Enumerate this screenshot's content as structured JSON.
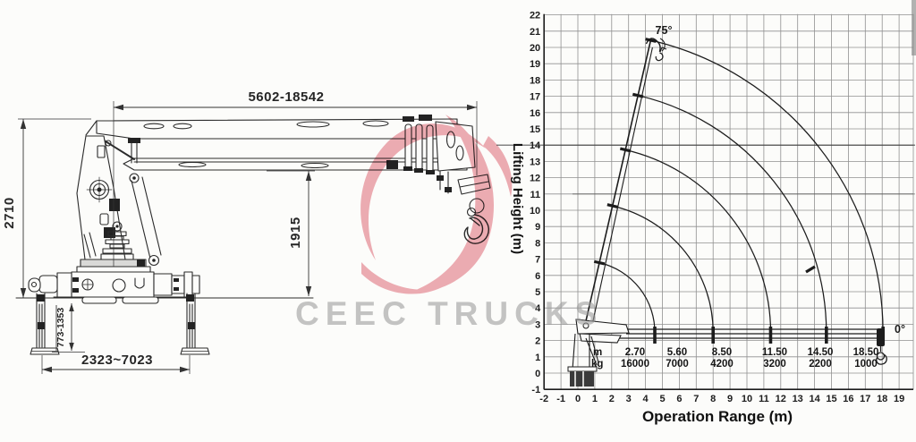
{
  "meta": {
    "description": "Truck mounted crane outline drawing with lifting capacity chart",
    "ink_color": "#2b2b2b",
    "grid_color": "#909090",
    "paper_color": "#fcfcfa"
  },
  "watermark": {
    "text": "CEEC TRUCKS",
    "text_color": "#9b9b9b",
    "logo_color": "#eda4ad"
  },
  "drawing": {
    "dimensions": {
      "boom_extension": "5602-18542",
      "overall_height": "2710",
      "boom_underside_height": "1915",
      "outrigger_clearance": "773-1353",
      "outrigger_span": "2323~7023"
    }
  },
  "chart": {
    "y_axis_title": "Lifting Height (m)",
    "x_axis_title": "Operation Range (m)",
    "max_angle_label": "75°",
    "min_angle_label": "0°",
    "table": {
      "row1_label": "m",
      "row2_label": "kg",
      "columns": [
        {
          "m": "2.70",
          "kg": "16000"
        },
        {
          "m": "5.60",
          "kg": "7000"
        },
        {
          "m": "8.50",
          "kg": "4200"
        },
        {
          "m": "11.50",
          "kg": "3200"
        },
        {
          "m": "14.50",
          "kg": "2200"
        },
        {
          "m": "18.50",
          "kg": "1000"
        }
      ]
    },
    "chart_data": {
      "type": "line",
      "title": "Crane lifting height vs operation range envelope",
      "xlabel": "Operation Range (m)",
      "ylabel": "Lifting Height (m)",
      "xlim": [
        -2,
        19.8
      ],
      "ylim": [
        -1,
        22
      ],
      "grid": true,
      "x_ticks": [
        -2,
        -1,
        0,
        1,
        2,
        3,
        4,
        5,
        6,
        7,
        8,
        9,
        10,
        11,
        12,
        13,
        14,
        15,
        16,
        17,
        18,
        19
      ],
      "y_ticks": [
        -1,
        0,
        1,
        2,
        3,
        4,
        5,
        6,
        7,
        8,
        9,
        10,
        11,
        12,
        13,
        14,
        15,
        16,
        17,
        18,
        19,
        20,
        21,
        22
      ],
      "boom_angle_max_deg": 75,
      "boom_angle_min_deg": 0,
      "drawn_boom_angle_deg": 77,
      "pivot": [
        0.32,
        2.5
      ],
      "tip_path_landings_x_m": [
        4.55,
        8.0,
        11.4,
        14.7,
        18.05
      ],
      "max_lifting_height_m": 20.5,
      "load_points": [
        {
          "range_m": 2.7,
          "capacity_kg": 16000
        },
        {
          "range_m": 5.6,
          "capacity_kg": 7000
        },
        {
          "range_m": 8.5,
          "capacity_kg": 4200
        },
        {
          "range_m": 11.5,
          "capacity_kg": 3200
        },
        {
          "range_m": 14.5,
          "capacity_kg": 2200
        },
        {
          "range_m": 18.5,
          "capacity_kg": 1000
        }
      ]
    }
  }
}
